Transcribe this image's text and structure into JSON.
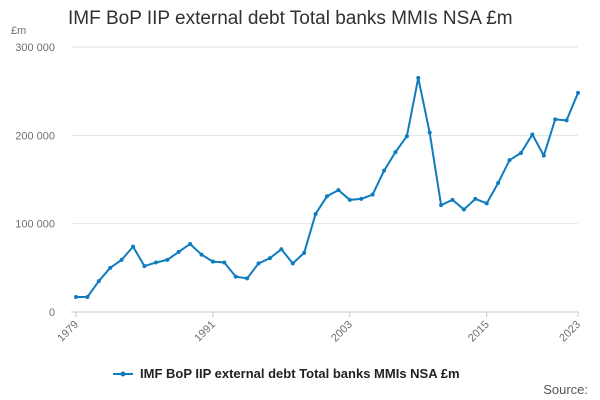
{
  "chart_data": {
    "type": "line",
    "title": "IMF BoP IIP external debt Total banks MMIs NSA £m",
    "unit_label": "£m",
    "xlabel": "",
    "ylabel": "",
    "ylim": [
      0,
      300000
    ],
    "yticks": [
      0,
      100000,
      200000,
      300000
    ],
    "ytick_labels": [
      "0",
      "100 000",
      "200 000",
      "300 000"
    ],
    "xlim": [
      1979,
      2023
    ],
    "xtick_labels": [
      "1979",
      "1991",
      "2003",
      "2015",
      "2023"
    ],
    "grid": true,
    "legend_position": "bottom",
    "series": [
      {
        "name": "IMF BoP IIP external debt Total banks MMIs NSA £m",
        "color": "#0f7cbf",
        "x": [
          1979,
          1980,
          1981,
          1982,
          1983,
          1984,
          1985,
          1986,
          1987,
          1988,
          1989,
          1990,
          1991,
          1992,
          1993,
          1994,
          1995,
          1996,
          1997,
          1998,
          1999,
          2000,
          2001,
          2002,
          2003,
          2004,
          2005,
          2006,
          2007,
          2008,
          2009,
          2010,
          2011,
          2012,
          2013,
          2014,
          2015,
          2016,
          2017,
          2018,
          2019,
          2020,
          2021,
          2022,
          2023
        ],
        "values": [
          17000,
          17000,
          35000,
          50000,
          59000,
          74000,
          52000,
          56000,
          59000,
          68000,
          77000,
          65000,
          57000,
          56000,
          40000,
          38000,
          55000,
          61000,
          71000,
          55000,
          67000,
          111000,
          131000,
          138000,
          127000,
          128000,
          133000,
          160000,
          181000,
          199000,
          265000,
          203000,
          121000,
          127000,
          116000,
          128000,
          123000,
          146000,
          172000,
          180000,
          201000,
          177000,
          218000,
          217000,
          248000
        ]
      }
    ]
  },
  "legend": {
    "color": "#0f7cbf"
  },
  "footer": {
    "source_label": "Source:"
  }
}
